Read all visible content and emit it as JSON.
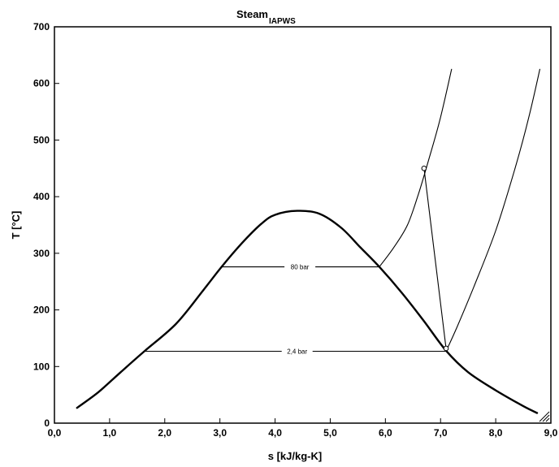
{
  "chart_data": {
    "type": "line",
    "title": "Steam",
    "title_subscript": "IAPWS",
    "xlabel": "s [kJ/kg-K]",
    "ylabel": "T [°C]",
    "xlim": [
      0,
      9
    ],
    "ylim": [
      0,
      700
    ],
    "x_ticks": [
      "0,0",
      "1,0",
      "2,0",
      "3,0",
      "4,0",
      "5,0",
      "6,0",
      "7,0",
      "8,0",
      "9,0"
    ],
    "y_ticks": [
      "0",
      "100",
      "200",
      "300",
      "400",
      "500",
      "600",
      "700"
    ],
    "grid": false,
    "series": [
      {
        "role": "saturation-dome",
        "points": [
          [
            0.41,
            27
          ],
          [
            0.8,
            55
          ],
          [
            1.2,
            90
          ],
          [
            1.63,
            127
          ],
          [
            2.2,
            175
          ],
          [
            2.7,
            235
          ],
          [
            3.03,
            276
          ],
          [
            3.4,
            318
          ],
          [
            3.75,
            352
          ],
          [
            4.0,
            368
          ],
          [
            4.4,
            375
          ],
          [
            4.8,
            370
          ],
          [
            5.2,
            345
          ],
          [
            5.55,
            310
          ],
          [
            5.89,
            276
          ],
          [
            6.3,
            230
          ],
          [
            6.7,
            180
          ],
          [
            7.1,
            128
          ],
          [
            7.5,
            90
          ],
          [
            8.0,
            58
          ],
          [
            8.5,
            30
          ],
          [
            8.75,
            18
          ]
        ]
      },
      {
        "role": "isobar-80-bar",
        "name": "80 bar",
        "points": [
          [
            3.03,
            276
          ],
          [
            5.89,
            276
          ],
          [
            6.15,
            310
          ],
          [
            6.4,
            350
          ],
          [
            6.6,
            405
          ],
          [
            6.8,
            470
          ],
          [
            7.0,
            540
          ],
          [
            7.2,
            625
          ]
        ]
      },
      {
        "role": "isobar-2.4-bar",
        "name": "2,4 bar",
        "points": [
          [
            1.63,
            127
          ],
          [
            7.1,
            127
          ],
          [
            7.3,
            170
          ],
          [
            7.6,
            240
          ],
          [
            8.0,
            340
          ],
          [
            8.35,
            450
          ],
          [
            8.6,
            540
          ],
          [
            8.8,
            625
          ]
        ]
      },
      {
        "role": "expansion-line",
        "points": [
          [
            6.7,
            450
          ],
          [
            7.1,
            132
          ]
        ]
      }
    ],
    "state_points": [
      [
        6.7,
        450
      ],
      [
        7.1,
        132
      ]
    ],
    "annotations": [
      {
        "text": "80 bar",
        "x": 4.45,
        "y": 276
      },
      {
        "text": "2,4 bar",
        "x": 4.4,
        "y": 127
      }
    ]
  }
}
